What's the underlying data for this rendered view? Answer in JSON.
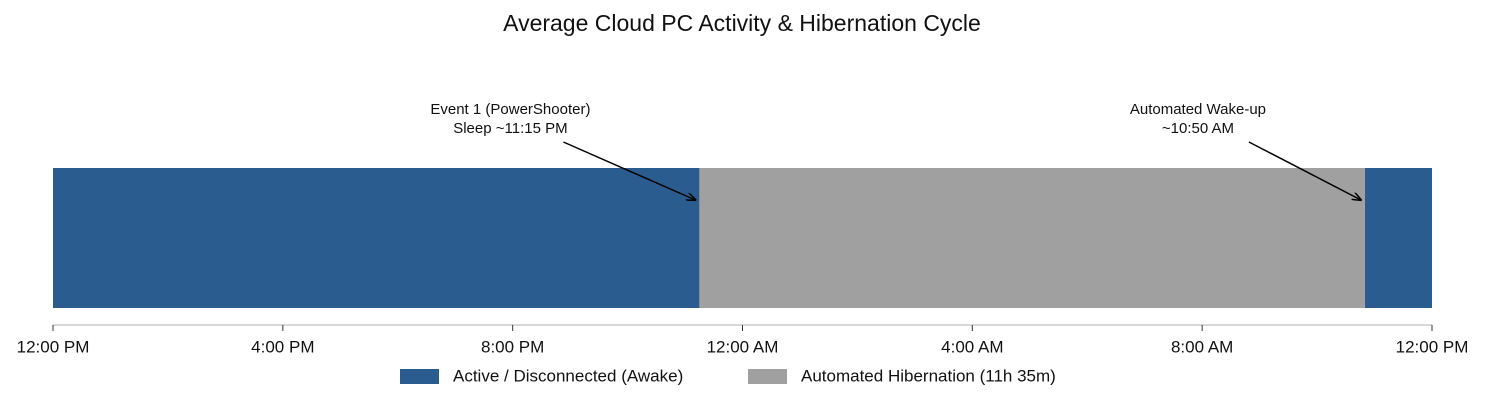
{
  "chart_data": {
    "type": "timeline",
    "title": "Average Cloud PC Activity & Hibernation Cycle",
    "xlim": [
      0,
      24
    ],
    "xticks": [
      {
        "value": 0,
        "label": "12:00 PM"
      },
      {
        "value": 4,
        "label": "4:00 PM"
      },
      {
        "value": 8,
        "label": "8:00 PM"
      },
      {
        "value": 12,
        "label": "12:00 AM"
      },
      {
        "value": 16,
        "label": "4:00 AM"
      },
      {
        "value": 20,
        "label": "8:00 AM"
      },
      {
        "value": 24,
        "label": "12:00 PM"
      }
    ],
    "series": [
      {
        "name": "Active / Disconnected (Awake)",
        "color": "#2b5c8f",
        "segments": [
          [
            0,
            11.25
          ],
          [
            22.833,
            24
          ]
        ]
      },
      {
        "name": "Automated Hibernation (11h 35m)",
        "color": "#a0a0a0",
        "segments": [
          [
            11.25,
            22.833
          ]
        ]
      }
    ],
    "annotations": [
      {
        "text": [
          "Event 1 (PowerShooter)",
          "Sleep ~11:15 PM"
        ],
        "x": 11.25
      },
      {
        "text": [
          "Automated Wake-up",
          "~10:50 AM"
        ],
        "x": 22.833
      }
    ]
  }
}
